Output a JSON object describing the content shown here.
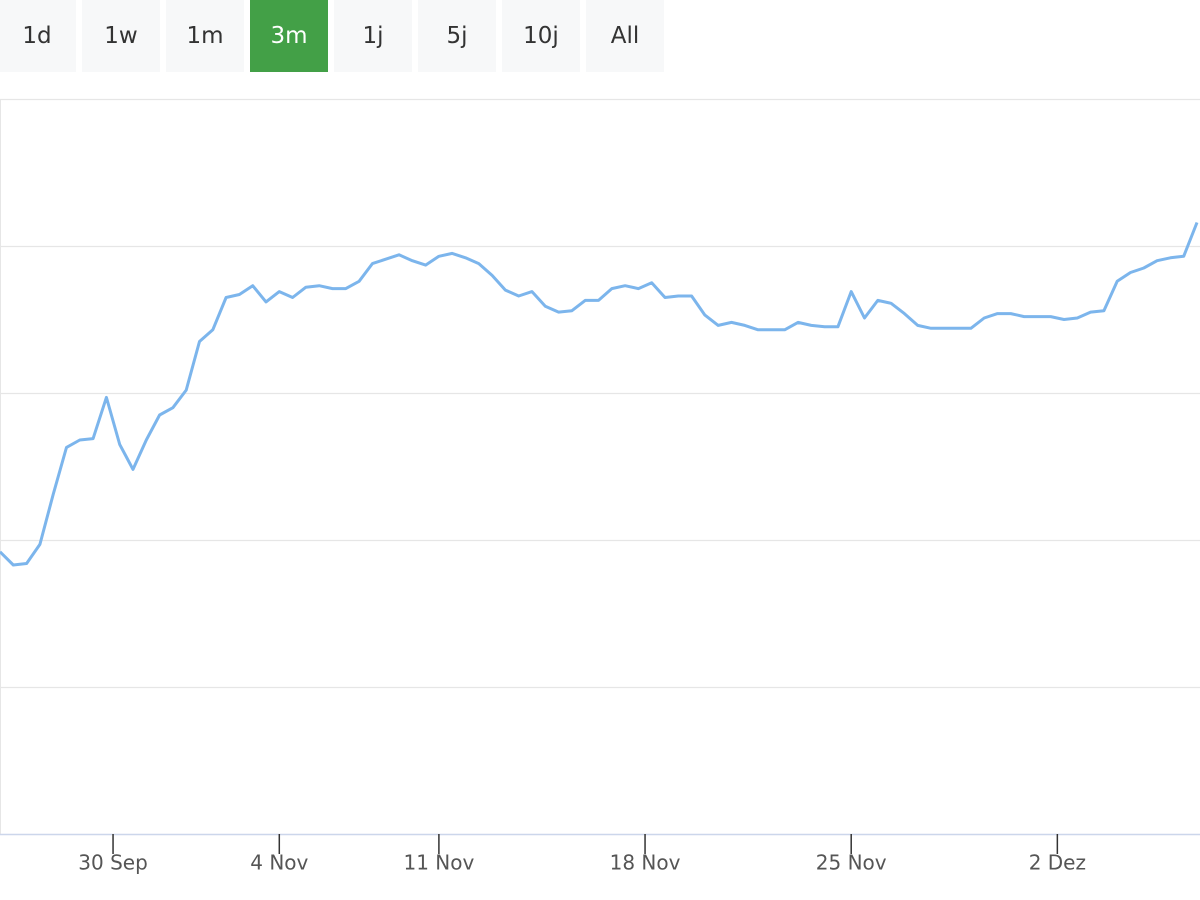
{
  "range_buttons": [
    "1d",
    "1w",
    "1m",
    "3m",
    "1j",
    "5j",
    "10j",
    "All"
  ],
  "selected": "3m",
  "chart_data": {
    "type": "line",
    "color": "#7cb5ec",
    "x": [
      0,
      1,
      2,
      3,
      4,
      5,
      6,
      7,
      8,
      9,
      10,
      11,
      12,
      13,
      14,
      15,
      16,
      17,
      18,
      19,
      20,
      21,
      22,
      23,
      24,
      25,
      26,
      27,
      28,
      29,
      30,
      31,
      32,
      33,
      34,
      35,
      36,
      37,
      38,
      39,
      40,
      41,
      42,
      43,
      44,
      45,
      46,
      47,
      48,
      49,
      50,
      51,
      52,
      53,
      54,
      55,
      56,
      57,
      58,
      59,
      60,
      61,
      62,
      63,
      64,
      65,
      66,
      67,
      68,
      69,
      70,
      71,
      72,
      73,
      74,
      75,
      76,
      77,
      78,
      79,
      80,
      81,
      82,
      83,
      84,
      85,
      86,
      87,
      88,
      89,
      90
    ],
    "values": [
      1.92,
      1.83,
      1.84,
      1.97,
      2.31,
      2.63,
      2.68,
      2.69,
      2.97,
      2.65,
      2.48,
      2.68,
      2.85,
      2.9,
      3.02,
      3.35,
      3.43,
      3.65,
      3.67,
      3.73,
      3.62,
      3.69,
      3.65,
      3.72,
      3.73,
      3.71,
      3.71,
      3.76,
      3.88,
      3.91,
      3.94,
      3.9,
      3.87,
      3.93,
      3.95,
      3.92,
      3.88,
      3.8,
      3.7,
      3.66,
      3.69,
      3.59,
      3.55,
      3.56,
      3.63,
      3.63,
      3.71,
      3.73,
      3.71,
      3.75,
      3.65,
      3.66,
      3.66,
      3.53,
      3.46,
      3.48,
      3.46,
      3.43,
      3.43,
      3.43,
      3.48,
      3.46,
      3.45,
      3.45,
      3.69,
      3.51,
      3.63,
      3.61,
      3.54,
      3.46,
      3.44,
      3.44,
      3.44,
      3.44,
      3.51,
      3.54,
      3.54,
      3.52,
      3.52,
      3.52,
      3.5,
      3.51,
      3.55,
      3.56,
      3.76,
      3.82,
      3.85,
      3.9,
      3.92,
      3.93,
      4.16
    ],
    "xlim": [
      0,
      90
    ],
    "xticks": [
      {
        "value": 8.5,
        "label": "30 Sep"
      },
      {
        "value": 21,
        "label": "4 Nov"
      },
      {
        "value": 33,
        "label": "11 Nov"
      },
      {
        "value": 48.5,
        "label": "18 Nov"
      },
      {
        "value": 64,
        "label": "25 Nov"
      },
      {
        "value": 79.5,
        "label": "2 Dez"
      }
    ],
    "ylim": [
      0,
      5
    ],
    "grid_values": [
      0,
      1,
      2,
      3,
      4,
      5
    ],
    "grid": true
  }
}
